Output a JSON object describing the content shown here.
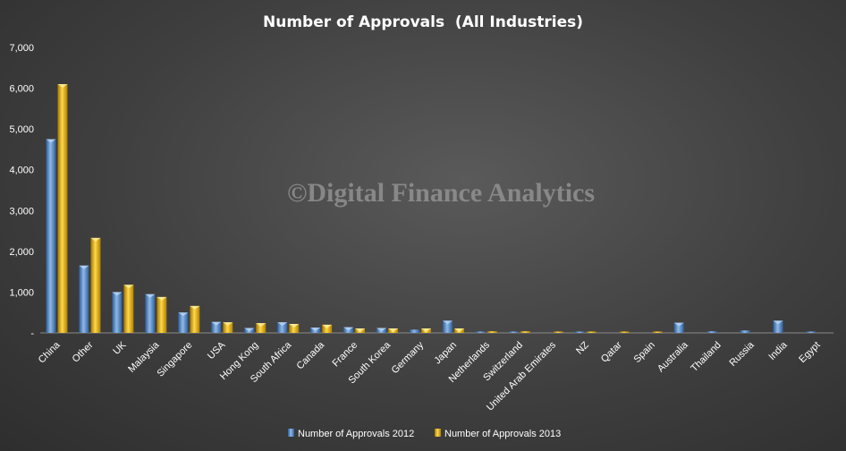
{
  "chart_data": {
    "type": "bar",
    "title": "Number of Approvals  (All Industries)",
    "watermark": "©Digital Finance Analytics",
    "xlabel": "",
    "ylabel": "",
    "ylim": [
      0,
      7000
    ],
    "yticks": [
      "-",
      "1,000",
      "2,000",
      "3,000",
      "4,000",
      "5,000",
      "6,000",
      "7,000"
    ],
    "grid": false,
    "legend_position": "bottom",
    "categories": [
      "China",
      "Other",
      "UK",
      "Malaysia",
      "Singapore",
      "USA",
      "Hong Kong",
      "South Africa",
      "Canada",
      "France",
      "South Korea",
      "Germany",
      "Japan",
      "Netherlands",
      "Switzerland",
      "United Arab Emirates",
      "NZ",
      "Qatar",
      "Spain",
      "Australia",
      "Thailand",
      "Russia",
      "India",
      "Egypt"
    ],
    "series": [
      {
        "name": "Number of Approvals 2012",
        "color": "#4f86c6",
        "values": [
          4750,
          1650,
          1000,
          950,
          500,
          270,
          120,
          260,
          130,
          140,
          120,
          80,
          300,
          10,
          30,
          0,
          10,
          0,
          0,
          250,
          40,
          60,
          300,
          10
        ]
      },
      {
        "name": "Number of Approvals 2013",
        "color": "#e0b020",
        "values": [
          6100,
          2330,
          1180,
          880,
          660,
          260,
          240,
          220,
          200,
          110,
          110,
          110,
          110,
          40,
          40,
          30,
          20,
          20,
          10,
          0,
          0,
          0,
          0,
          0
        ]
      }
    ]
  }
}
